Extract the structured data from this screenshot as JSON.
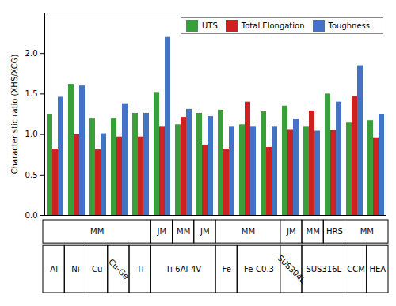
{
  "chart_data": {
    "type": "bar",
    "ylabel": "Characteristic ratio (XHS/XCG)",
    "categories": [
      null,
      null,
      null,
      null,
      null,
      null,
      null,
      null,
      null,
      null,
      null,
      null,
      null,
      null,
      null,
      null
    ],
    "series": [
      {
        "name": "UTS",
        "color": "#3a9e3a",
        "values": [
          1.25,
          1.62,
          1.2,
          1.2,
          1.26,
          1.52,
          1.12,
          1.26,
          1.3,
          1.12,
          1.28,
          1.35,
          1.1,
          1.5,
          1.15,
          1.17
        ]
      },
      {
        "name": "Total Elongation",
        "color": "#cc2222",
        "values": [
          0.82,
          1.0,
          0.81,
          0.97,
          0.97,
          1.1,
          1.21,
          0.87,
          0.82,
          1.4,
          0.84,
          1.06,
          1.29,
          1.05,
          1.47,
          0.96
        ]
      },
      {
        "name": "Toughness",
        "color": "#4472c4",
        "values": [
          1.46,
          1.6,
          1.01,
          1.38,
          1.26,
          2.2,
          1.31,
          1.22,
          1.1,
          1.1,
          1.1,
          1.19,
          1.04,
          1.4,
          1.85,
          1.25
        ]
      }
    ],
    "ylim": [
      0.0,
      2.5
    ],
    "yticks": [
      {
        "value": 0,
        "label": "0.0"
      },
      0.5,
      {
        "value": 1,
        "label": "1.0"
      },
      1.5,
      {
        "value": 2,
        "label": "2.0"
      }
    ],
    "grid": false,
    "legend": "upper right",
    "tick_labels": "y",
    "process_spans": [
      {
        "label": "MM",
        "first": 0,
        "last": 4
      },
      {
        "label": "JM",
        "first": 5,
        "last": 5
      },
      {
        "label": "MM",
        "first": 6,
        "last": 6
      },
      {
        "label": "JM",
        "first": 7,
        "last": 7
      },
      {
        "label": "MM",
        "first": 8,
        "last": 10
      },
      {
        "label": "JM",
        "first": 11,
        "last": 11
      },
      {
        "label": "MM",
        "first": 12,
        "last": 12
      },
      {
        "label": "HRS",
        "first": 13,
        "last": 13
      },
      {
        "label": "MM",
        "first": 14,
        "last": 15
      }
    ],
    "material_spans": [
      {
        "label": "Al",
        "first": 0,
        "last": 0
      },
      {
        "label": "Ni",
        "first": 1,
        "last": 1
      },
      {
        "label": "Cu",
        "first": 2,
        "last": 2
      },
      {
        "label": "Cu-Ge",
        "first": 3,
        "last": 3
      },
      {
        "label": "Ti",
        "first": 4,
        "last": 4
      },
      {
        "label": "Ti-6Al-4V",
        "first": 5,
        "last": 7
      },
      {
        "label": "Fe",
        "first": 8,
        "last": 8
      },
      {
        "label": "Fe-C0.3",
        "first": 9,
        "last": 10
      },
      {
        "label": "SUS304L",
        "first": 11,
        "last": 11
      },
      {
        "label": "SUS316L",
        "first": 12,
        "last": 13
      },
      {
        "label": "CCM",
        "first": 14,
        "last": 14
      },
      {
        "label": "HEA",
        "first": 15,
        "last": 15
      }
    ]
  }
}
